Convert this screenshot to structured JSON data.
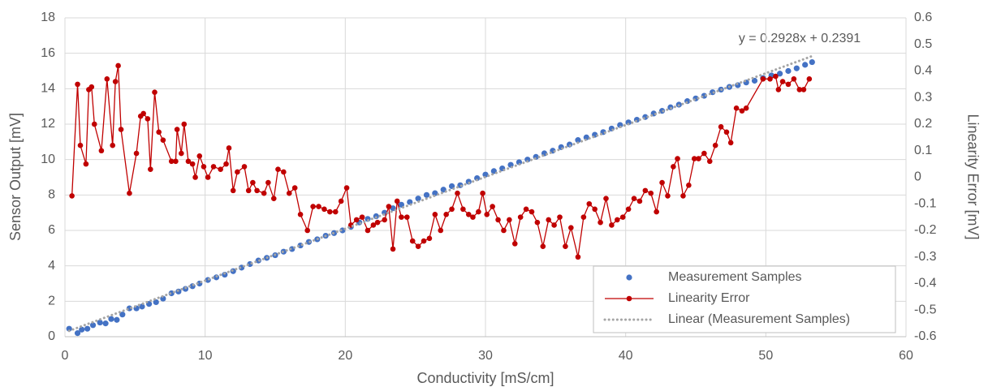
{
  "chart_data": {
    "type": "scatter",
    "xlabel": "Conductivity [mS/cm]",
    "ylabel": "Sensor Output [mV]",
    "y2label": "Linearity Error [mV]",
    "annotation": "y = 0.2928x + 0.2391",
    "xlim": [
      0,
      60
    ],
    "xticks": [
      0,
      10,
      20,
      30,
      40,
      50,
      60
    ],
    "ylim": [
      0,
      18
    ],
    "yticks": [
      0,
      2,
      4,
      6,
      8,
      10,
      12,
      14,
      16,
      18
    ],
    "y2lim": [
      -0.6,
      0.6
    ],
    "y2ticks": [
      -0.6,
      -0.5,
      -0.4,
      -0.3,
      -0.2,
      -0.1,
      0,
      0.1,
      0.2,
      0.3,
      0.4,
      0.5,
      0.6
    ],
    "grid": true,
    "legend": "bottom-right",
    "series": [
      {
        "name": "Measurement Samples",
        "type": "scatter",
        "color": "#4472c4",
        "x": [
          0.3,
          0.9,
          1.2,
          1.6,
          2.0,
          2.5,
          2.9,
          3.3,
          3.7,
          4.1,
          4.6,
          5.1,
          5.5,
          6.0,
          6.5,
          7.0,
          7.6,
          8.1,
          8.6,
          9.1,
          9.6,
          10.2,
          10.8,
          11.4,
          12.0,
          12.6,
          13.2,
          13.8,
          14.4,
          15.0,
          15.6,
          16.2,
          16.8,
          17.4,
          18.0,
          18.6,
          19.2,
          19.8,
          20.4,
          21.0,
          21.6,
          22.2,
          22.8,
          23.4,
          24.0,
          24.6,
          25.2,
          25.8,
          26.4,
          27.0,
          27.6,
          28.2,
          28.8,
          29.4,
          30.0,
          30.6,
          31.2,
          31.8,
          32.4,
          33.0,
          33.6,
          34.2,
          34.8,
          35.4,
          36.0,
          36.6,
          37.2,
          37.8,
          38.4,
          39.0,
          39.6,
          40.2,
          40.8,
          41.4,
          42.0,
          42.6,
          43.2,
          43.8,
          44.4,
          45.0,
          45.6,
          46.2,
          46.8,
          47.4,
          48.0,
          48.6,
          49.2,
          49.8,
          50.4,
          51.0,
          51.6,
          52.2,
          52.8,
          53.3
        ],
        "values": [
          0.45,
          0.2,
          0.4,
          0.45,
          0.65,
          0.8,
          0.75,
          1.0,
          0.95,
          1.25,
          1.6,
          1.6,
          1.7,
          1.85,
          1.95,
          2.15,
          2.45,
          2.55,
          2.7,
          2.85,
          3.0,
          3.2,
          3.35,
          3.5,
          3.7,
          3.9,
          4.1,
          4.3,
          4.45,
          4.6,
          4.8,
          4.95,
          5.15,
          5.35,
          5.5,
          5.7,
          5.85,
          6.0,
          6.2,
          6.45,
          6.65,
          6.8,
          7.0,
          7.25,
          7.45,
          7.6,
          7.8,
          8.0,
          8.1,
          8.3,
          8.5,
          8.55,
          8.75,
          8.95,
          9.15,
          9.35,
          9.5,
          9.7,
          9.85,
          10.0,
          10.15,
          10.35,
          10.5,
          10.7,
          10.85,
          11.1,
          11.25,
          11.4,
          11.55,
          11.75,
          11.95,
          12.1,
          12.25,
          12.4,
          12.6,
          12.75,
          12.95,
          13.1,
          13.3,
          13.45,
          13.6,
          13.8,
          13.95,
          14.1,
          14.2,
          14.35,
          14.45,
          14.6,
          14.75,
          14.85,
          15.0,
          15.15,
          15.35,
          15.5
        ]
      },
      {
        "name": "Linearity Error",
        "type": "line",
        "axis": "y2",
        "color": "#c00000",
        "x": [
          0.5,
          0.9,
          1.1,
          1.5,
          1.7,
          1.9,
          2.1,
          2.6,
          3.0,
          3.4,
          3.6,
          3.8,
          4.0,
          4.6,
          5.1,
          5.4,
          5.6,
          5.9,
          6.1,
          6.4,
          6.7,
          7.0,
          7.6,
          7.9,
          8.0,
          8.3,
          8.5,
          8.8,
          9.1,
          9.3,
          9.6,
          9.9,
          10.2,
          10.6,
          11.1,
          11.5,
          11.7,
          12.0,
          12.3,
          12.8,
          13.1,
          13.4,
          13.7,
          14.2,
          14.5,
          14.9,
          15.2,
          15.6,
          16.0,
          16.4,
          16.8,
          17.3,
          17.7,
          18.1,
          18.5,
          18.9,
          19.3,
          19.7,
          20.1,
          20.4,
          20.8,
          21.2,
          21.6,
          22.0,
          22.3,
          22.8,
          23.1,
          23.4,
          23.7,
          24.0,
          24.4,
          24.8,
          25.2,
          25.6,
          26.0,
          26.4,
          26.8,
          27.2,
          27.6,
          28.0,
          28.4,
          28.8,
          29.1,
          29.5,
          29.8,
          30.1,
          30.5,
          30.9,
          31.3,
          31.7,
          32.1,
          32.5,
          32.9,
          33.3,
          33.7,
          34.1,
          34.5,
          34.9,
          35.3,
          35.7,
          36.1,
          36.6,
          37.0,
          37.4,
          37.8,
          38.2,
          38.6,
          39.0,
          39.4,
          39.8,
          40.2,
          40.6,
          41.0,
          41.4,
          41.8,
          42.2,
          42.6,
          43.0,
          43.4,
          43.7,
          44.1,
          44.5,
          44.9,
          45.2,
          45.6,
          46.0,
          46.4,
          46.8,
          47.2,
          47.5,
          47.9,
          48.3,
          48.6,
          49.8,
          50.3,
          50.7,
          50.9,
          51.2,
          51.6,
          52.0,
          52.4,
          52.7,
          53.1
        ],
        "values": [
          -0.07,
          0.35,
          0.12,
          0.05,
          0.33,
          0.34,
          0.2,
          0.1,
          0.37,
          0.12,
          0.36,
          0.42,
          0.18,
          -0.06,
          0.09,
          0.23,
          0.24,
          0.22,
          0.03,
          0.32,
          0.17,
          0.14,
          0.06,
          0.06,
          0.18,
          0.09,
          0.2,
          0.06,
          0.05,
          0.0,
          0.08,
          0.04,
          0.0,
          0.04,
          0.03,
          0.05,
          0.11,
          -0.05,
          0.02,
          0.04,
          -0.05,
          -0.02,
          -0.05,
          -0.06,
          -0.02,
          -0.08,
          0.03,
          0.02,
          -0.06,
          -0.04,
          -0.14,
          -0.2,
          -0.11,
          -0.11,
          -0.12,
          -0.13,
          -0.13,
          -0.09,
          -0.04,
          -0.18,
          -0.16,
          -0.15,
          -0.2,
          -0.18,
          -0.17,
          -0.16,
          -0.11,
          -0.27,
          -0.09,
          -0.15,
          -0.15,
          -0.24,
          -0.26,
          -0.24,
          -0.23,
          -0.14,
          -0.2,
          -0.14,
          -0.12,
          -0.06,
          -0.12,
          -0.14,
          -0.15,
          -0.13,
          -0.06,
          -0.14,
          -0.11,
          -0.16,
          -0.2,
          -0.16,
          -0.25,
          -0.15,
          -0.12,
          -0.13,
          -0.17,
          -0.26,
          -0.16,
          -0.18,
          -0.15,
          -0.26,
          -0.19,
          -0.3,
          -0.15,
          -0.1,
          -0.12,
          -0.17,
          -0.08,
          -0.18,
          -0.16,
          -0.15,
          -0.12,
          -0.08,
          -0.09,
          -0.05,
          -0.06,
          -0.13,
          -0.02,
          -0.07,
          0.04,
          0.07,
          -0.07,
          -0.03,
          0.07,
          0.07,
          0.09,
          0.06,
          0.12,
          0.19,
          0.17,
          0.13,
          0.26,
          0.25,
          0.26,
          0.37,
          0.37,
          0.38,
          0.33,
          0.36,
          0.35,
          0.37,
          0.33,
          0.33,
          0.37
        ]
      },
      {
        "name": "Linear (Measurement Samples)",
        "type": "trendline",
        "color": "#a5a5a5",
        "x": [
          0.3,
          53.3
        ],
        "values": [
          0.33,
          15.84
        ]
      }
    ]
  }
}
